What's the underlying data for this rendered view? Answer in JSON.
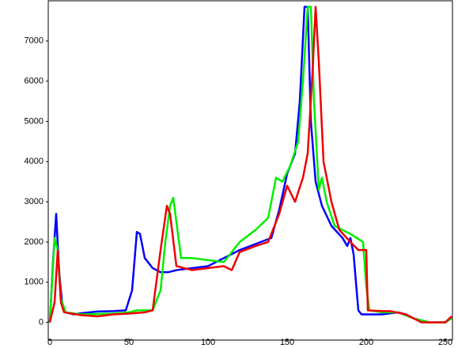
{
  "chart_data": {
    "type": "line",
    "xlim": [
      0,
      255
    ],
    "ylim": [
      -440,
      8000
    ],
    "xticks": [
      0,
      50,
      100,
      150,
      200,
      250
    ],
    "yticks": [
      0,
      1000,
      2000,
      3000,
      4000,
      5000,
      6000,
      7000
    ],
    "grid": false,
    "series": [
      {
        "color": "#0000ff",
        "x": [
          0,
          2,
          4,
          6,
          8,
          10,
          15,
          20,
          30,
          40,
          48,
          52,
          55,
          57,
          60,
          65,
          70,
          75,
          80,
          90,
          100,
          110,
          120,
          130,
          140,
          145,
          150,
          155,
          158,
          161,
          163,
          165,
          168,
          172,
          178,
          185,
          188,
          190,
          192,
          195,
          197,
          200,
          210,
          220,
          225,
          230,
          240,
          250,
          254
        ],
        "values": [
          0,
          1500,
          2700,
          1200,
          400,
          250,
          200,
          230,
          270,
          280,
          300,
          800,
          2250,
          2200,
          1600,
          1350,
          1250,
          1250,
          1300,
          1350,
          1400,
          1600,
          1800,
          1950,
          2100,
          2800,
          3700,
          4200,
          5500,
          7850,
          7850,
          5000,
          3500,
          2900,
          2400,
          2100,
          1900,
          2100,
          1700,
          300,
          200,
          200,
          200,
          250,
          200,
          100,
          0,
          0,
          150
        ]
      },
      {
        "color": "#00ee00",
        "x": [
          0,
          3,
          5,
          7,
          10,
          20,
          40,
          50,
          55,
          65,
          70,
          73,
          76,
          78,
          80,
          83,
          90,
          100,
          110,
          120,
          130,
          138,
          143,
          147,
          152,
          157,
          160,
          163,
          165,
          167,
          170,
          172,
          175,
          180,
          190,
          198,
          200,
          202,
          210,
          220,
          230,
          240,
          250,
          254
        ],
        "values": [
          0,
          2100,
          1800,
          600,
          250,
          200,
          220,
          250,
          300,
          300,
          800,
          2000,
          2900,
          3100,
          2500,
          1600,
          1600,
          1550,
          1500,
          2000,
          2300,
          2600,
          3600,
          3500,
          3900,
          4500,
          6000,
          7850,
          7850,
          5500,
          3300,
          3600,
          3000,
          2400,
          2200,
          2000,
          900,
          300,
          250,
          250,
          100,
          0,
          0,
          100
        ]
      },
      {
        "color": "#ee0000",
        "x": [
          0,
          3,
          5,
          7,
          9,
          20,
          30,
          40,
          50,
          60,
          65,
          70,
          74,
          76,
          80,
          90,
          100,
          110,
          115,
          120,
          130,
          138,
          145,
          150,
          155,
          160,
          163,
          166,
          168,
          170,
          173,
          178,
          183,
          190,
          195,
          200,
          201,
          210,
          215,
          225,
          235,
          250,
          254
        ],
        "values": [
          0,
          500,
          1800,
          500,
          250,
          180,
          150,
          200,
          220,
          250,
          300,
          1800,
          2900,
          2700,
          1400,
          1300,
          1350,
          1400,
          1300,
          1750,
          1900,
          2000,
          2700,
          3400,
          3000,
          3600,
          4200,
          6200,
          7850,
          6500,
          4000,
          3000,
          2300,
          2000,
          1800,
          1800,
          300,
          280,
          280,
          200,
          0,
          0,
          150
        ]
      }
    ]
  }
}
